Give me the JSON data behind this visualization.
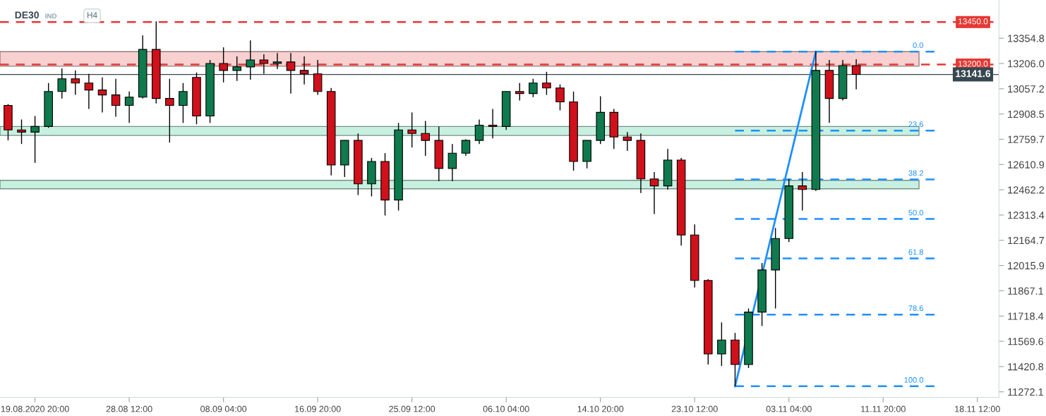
{
  "chart_data": {
    "type": "candlestick",
    "title": "DE30",
    "annotations": [
      "IND",
      "H4"
    ],
    "categories": [
      null,
      null,
      "19.08.2020 20:00",
      null,
      null,
      null,
      null,
      null,
      null,
      "28.08 12:00",
      null,
      null,
      null,
      null,
      null,
      null,
      "08.09 04:00",
      null,
      null,
      null,
      null,
      null,
      null,
      "16.09 20:00",
      null,
      null,
      null,
      null,
      null,
      null,
      "25.09 12:00",
      null,
      null,
      null,
      null,
      null,
      null,
      "06.10 04:00",
      null,
      null,
      null,
      null,
      null,
      null,
      "14.10 20:00",
      null,
      null,
      null,
      null,
      null,
      null,
      "23.10 12:00",
      null,
      null,
      null,
      null,
      null,
      null,
      "03.11 04:00",
      null,
      null,
      null,
      null,
      null,
      null,
      "11.11 20:00",
      null,
      null,
      null,
      null,
      null,
      null,
      "18.11 12:00",
      null
    ],
    "ohlc": [
      [
        12959,
        12967,
        12753,
        12815
      ],
      [
        12815,
        12876,
        12732,
        12802
      ],
      [
        12802,
        12897,
        12621,
        12835
      ],
      [
        12835,
        13091,
        12827,
        13041
      ],
      [
        13041,
        13177,
        13000,
        13116
      ],
      [
        13116,
        13165,
        13021,
        13091
      ],
      [
        13091,
        13145,
        12938,
        13050
      ],
      [
        13050,
        13124,
        12918,
        13021
      ],
      [
        13021,
        13116,
        12893,
        12959
      ],
      [
        12959,
        13041,
        12856,
        13008
      ],
      [
        13008,
        13371,
        13000,
        13289
      ],
      [
        13289,
        13454,
        12971,
        13000
      ],
      [
        13000,
        13116,
        12740,
        12959
      ],
      [
        12959,
        13091,
        12856,
        13041
      ],
      [
        13124,
        13153,
        12848,
        12897
      ],
      [
        12897,
        13227,
        12856,
        13206
      ],
      [
        13206,
        13301,
        13095,
        13165
      ],
      [
        13165,
        13248,
        13103,
        13186
      ],
      [
        13186,
        13342,
        13111,
        13227
      ],
      [
        13227,
        13260,
        13145,
        13206
      ],
      [
        13206,
        13268,
        13173,
        13215
      ],
      [
        13215,
        13268,
        13029,
        13165
      ],
      [
        13165,
        13248,
        13083,
        13145
      ],
      [
        13145,
        13227,
        13021,
        13041
      ],
      [
        13041,
        13062,
        12547,
        12608
      ],
      [
        12608,
        12753,
        12538,
        12753
      ],
      [
        12753,
        12794,
        12431,
        12497
      ],
      [
        12497,
        12650,
        12423,
        12629
      ],
      [
        12629,
        12678,
        12311,
        12402
      ],
      [
        12402,
        12856,
        12340,
        12815
      ],
      [
        12815,
        12918,
        12711,
        12794
      ],
      [
        12794,
        12868,
        12662,
        12753
      ],
      [
        12753,
        12835,
        12513,
        12588
      ],
      [
        12588,
        12732,
        12513,
        12678
      ],
      [
        12678,
        12760,
        12662,
        12753
      ],
      [
        12753,
        12876,
        12732,
        12843
      ],
      [
        12843,
        12938,
        12765,
        12835
      ],
      [
        12835,
        13041,
        12815,
        13041
      ],
      [
        13041,
        13091,
        12988,
        13029
      ],
      [
        13029,
        13116,
        13008,
        13091
      ],
      [
        13091,
        13157,
        13021,
        13062
      ],
      [
        13062,
        13083,
        12930,
        12980
      ],
      [
        12980,
        13041,
        12575,
        12629
      ],
      [
        12629,
        12753,
        12588,
        12753
      ],
      [
        12753,
        13013,
        12732,
        12918
      ],
      [
        12918,
        12938,
        12703,
        12773
      ],
      [
        12773,
        12802,
        12691,
        12753
      ],
      [
        12753,
        12794,
        12443,
        12526
      ],
      [
        12526,
        12567,
        12320,
        12485
      ],
      [
        12485,
        12703,
        12464,
        12637
      ],
      [
        12637,
        12650,
        12134,
        12196
      ],
      [
        12196,
        12258,
        11887,
        11928
      ],
      [
        11928,
        11936,
        11433,
        11495
      ],
      [
        11495,
        11681,
        11425,
        11577
      ],
      [
        11577,
        11619,
        11305,
        11433
      ],
      [
        11433,
        11763,
        11412,
        11742
      ],
      [
        11742,
        12031,
        11660,
        11990
      ],
      [
        11990,
        12237,
        11763,
        12175
      ],
      [
        12175,
        12526,
        12155,
        12485
      ],
      [
        12485,
        12567,
        12340,
        12464
      ],
      [
        12464,
        13276,
        12456,
        13165
      ],
      [
        13165,
        13227,
        12856,
        13000
      ],
      [
        13000,
        13227,
        12988,
        13194
      ],
      [
        13194,
        13231,
        13054,
        13141.6
      ],
      null,
      null,
      null,
      null,
      null,
      null,
      null,
      null,
      null,
      null
    ],
    "colors": [
      "#d0101a",
      "#d0101a",
      "#0f7a4d",
      "#0f7a4d",
      "#0f7a4d",
      "#d0101a",
      "#d0101a",
      "#d0101a",
      "#d0101a",
      "#0f7a4d",
      "#0f7a4d",
      "#d0101a",
      "#d0101a",
      "#0f7a4d",
      "#d0101a",
      "#0f7a4d",
      "#d0101a",
      "#0f7a4d",
      "#0f7a4d",
      "#d0101a",
      "#0f7a4d",
      "#d0101a",
      "#d0101a",
      "#d0101a",
      "#d0101a",
      "#0f7a4d",
      "#d0101a",
      "#0f7a4d",
      "#d0101a",
      "#0f7a4d",
      "#d0101a",
      "#d0101a",
      "#d0101a",
      "#0f7a4d",
      "#0f7a4d",
      "#0f7a4d",
      "#d0101a",
      "#0f7a4d",
      "#d0101a",
      "#0f7a4d",
      "#d0101a",
      "#d0101a",
      "#d0101a",
      "#0f7a4d",
      "#0f7a4d",
      "#d0101a",
      "#d0101a",
      "#d0101a",
      "#d0101a",
      "#0f7a4d",
      "#d0101a",
      "#d0101a",
      "#d0101a",
      "#0f7a4d",
      "#d0101a",
      "#0f7a4d",
      "#0f7a4d",
      "#0f7a4d",
      "#0f7a4d",
      "#d0101a",
      "#0f7a4d",
      "#d0101a",
      "#0f7a4d",
      "#d0101a",
      null,
      null,
      null,
      null,
      null,
      null,
      null,
      null,
      null,
      null
    ],
    "series": [
      {
        "type": "line",
        "color": "#1e90ff",
        "line_style": "solid",
        "values": [
          null,
          null,
          null,
          null,
          null,
          null,
          null,
          null,
          null,
          null,
          null,
          null,
          null,
          null,
          null,
          null,
          null,
          null,
          null,
          null,
          null,
          null,
          null,
          null,
          null,
          null,
          null,
          null,
          null,
          null,
          null,
          null,
          null,
          null,
          null,
          null,
          null,
          null,
          null,
          null,
          null,
          null,
          null,
          null,
          null,
          null,
          null,
          null,
          null,
          null,
          null,
          null,
          null,
          null,
          11305,
          null,
          null,
          null,
          null,
          null,
          13276,
          null,
          null,
          null,
          null,
          null,
          null,
          null,
          null,
          null,
          null,
          null,
          null,
          null
        ]
      },
      {
        "type": "line",
        "name": "0.0",
        "color": "#1e90ff",
        "line_style": "dashed",
        "values": [
          null,
          null,
          null,
          null,
          null,
          null,
          null,
          null,
          null,
          null,
          null,
          null,
          null,
          null,
          null,
          null,
          null,
          null,
          null,
          null,
          null,
          null,
          null,
          null,
          null,
          null,
          null,
          null,
          null,
          null,
          null,
          null,
          null,
          null,
          null,
          null,
          null,
          null,
          null,
          null,
          null,
          null,
          null,
          null,
          null,
          null,
          null,
          null,
          null,
          null,
          null,
          null,
          null,
          null,
          13276,
          13276,
          13276,
          13276,
          13276,
          13276,
          13276,
          13276,
          13276,
          13276,
          13276,
          13276,
          13276,
          13276,
          13276,
          13276,
          null,
          null,
          null,
          null
        ]
      },
      {
        "type": "line",
        "name": "23.6",
        "color": "#1e90ff",
        "line_style": "dashed",
        "values": [
          null,
          null,
          null,
          null,
          null,
          null,
          null,
          null,
          null,
          null,
          null,
          null,
          null,
          null,
          null,
          null,
          null,
          null,
          null,
          null,
          null,
          null,
          null,
          null,
          null,
          null,
          null,
          null,
          null,
          null,
          null,
          null,
          null,
          null,
          null,
          null,
          null,
          null,
          null,
          null,
          null,
          null,
          null,
          null,
          null,
          null,
          null,
          null,
          null,
          null,
          null,
          null,
          null,
          null,
          12811,
          12811,
          12811,
          12811,
          12811,
          12811,
          null,
          12811,
          12811,
          12811,
          12811,
          12811,
          12811,
          12811,
          12811,
          12811,
          null,
          null,
          null,
          null
        ]
      },
      {
        "type": "line",
        "name": "38.2",
        "color": "#1e90ff",
        "line_style": "dashed",
        "values": [
          null,
          null,
          null,
          null,
          null,
          null,
          null,
          null,
          null,
          null,
          null,
          null,
          null,
          null,
          null,
          null,
          null,
          null,
          null,
          null,
          null,
          null,
          null,
          null,
          null,
          null,
          null,
          null,
          null,
          null,
          null,
          null,
          null,
          null,
          null,
          null,
          null,
          null,
          null,
          null,
          null,
          null,
          null,
          null,
          null,
          null,
          null,
          null,
          null,
          null,
          null,
          null,
          null,
          null,
          12523,
          12523,
          12523,
          12523,
          12523,
          12523,
          null,
          12523,
          12523,
          12523,
          12523,
          12523,
          12523,
          12523,
          12523,
          12523,
          null,
          null,
          null,
          null
        ]
      },
      {
        "type": "line",
        "name": "50.0",
        "color": "#1e90ff",
        "line_style": "dashed",
        "values": [
          null,
          null,
          null,
          null,
          null,
          null,
          null,
          null,
          null,
          null,
          null,
          null,
          null,
          null,
          null,
          null,
          null,
          null,
          null,
          null,
          null,
          null,
          null,
          null,
          null,
          null,
          null,
          null,
          null,
          null,
          null,
          null,
          null,
          null,
          null,
          null,
          null,
          null,
          null,
          null,
          null,
          null,
          null,
          null,
          null,
          null,
          null,
          null,
          null,
          null,
          null,
          null,
          null,
          null,
          12290,
          12290,
          12290,
          12290,
          null,
          12290,
          12290,
          12290,
          12290,
          12290,
          12290,
          12290,
          12290,
          12290,
          12290,
          12290,
          null,
          null,
          null,
          null
        ]
      },
      {
        "type": "line",
        "name": "61.8",
        "color": "#1e90ff",
        "line_style": "dashed",
        "values": [
          null,
          null,
          null,
          null,
          null,
          null,
          null,
          null,
          null,
          null,
          null,
          null,
          null,
          null,
          null,
          null,
          null,
          null,
          null,
          null,
          null,
          null,
          null,
          null,
          null,
          null,
          null,
          null,
          null,
          null,
          null,
          null,
          null,
          null,
          null,
          null,
          null,
          null,
          null,
          null,
          null,
          null,
          null,
          null,
          null,
          null,
          null,
          null,
          null,
          null,
          null,
          null,
          null,
          null,
          12058,
          12058,
          12058,
          null,
          12058,
          12058,
          12058,
          12058,
          12058,
          12058,
          12058,
          12058,
          12058,
          12058,
          12058,
          12058,
          null,
          null,
          null,
          null
        ]
      },
      {
        "type": "line",
        "name": "78.6",
        "color": "#1e90ff",
        "line_style": "dashed",
        "values": [
          null,
          null,
          null,
          null,
          null,
          null,
          null,
          null,
          null,
          null,
          null,
          null,
          null,
          null,
          null,
          null,
          null,
          null,
          null,
          null,
          null,
          null,
          null,
          null,
          null,
          null,
          null,
          null,
          null,
          null,
          null,
          null,
          null,
          null,
          null,
          null,
          null,
          null,
          null,
          null,
          null,
          null,
          null,
          null,
          null,
          null,
          null,
          null,
          null,
          null,
          null,
          null,
          null,
          null,
          11727,
          null,
          11727,
          11727,
          11727,
          11727,
          11727,
          11727,
          11727,
          11727,
          11727,
          11727,
          11727,
          11727,
          11727,
          11727,
          null,
          null,
          null,
          null
        ]
      },
      {
        "type": "line",
        "name": "100.0",
        "color": "#1e90ff",
        "line_style": "dashed",
        "values": [
          null,
          null,
          null,
          null,
          null,
          null,
          null,
          null,
          null,
          null,
          null,
          null,
          null,
          null,
          null,
          null,
          null,
          null,
          null,
          null,
          null,
          null,
          null,
          null,
          null,
          null,
          null,
          null,
          null,
          null,
          null,
          null,
          null,
          null,
          null,
          null,
          null,
          null,
          null,
          null,
          null,
          null,
          null,
          null,
          null,
          null,
          null,
          null,
          null,
          null,
          null,
          null,
          null,
          null,
          11305,
          11305,
          11305,
          11305,
          11305,
          11305,
          11305,
          11305,
          11305,
          11305,
          11305,
          11305,
          11305,
          11305,
          11305,
          11305,
          null,
          null,
          null,
          null
        ]
      }
    ],
    "ylim": [
      11240,
      13580
    ],
    "yticks": [
      11272.1,
      11420.8,
      11569.6,
      11718.4,
      11867.1,
      12015.9,
      12164.7,
      12313.4,
      12462.2,
      12610.9,
      12759.7,
      12908.5,
      13057.2,
      {
        "value": 13206.0,
        "label": "13206.0"
      },
      13354.8
    ],
    "bands": [
      {
        "axis": "y",
        "from": 13190,
        "to": 13276,
        "color": "#f8d0d0"
      },
      {
        "axis": "y",
        "from": 12782,
        "to": 12835,
        "color": "#c8f0e0"
      },
      {
        "axis": "y",
        "from": 12468,
        "to": 12518,
        "color": "#c8f0e0"
      }
    ],
    "ref_lines": [
      {
        "axis": "y",
        "value": 13450,
        "label": "13450.0",
        "color": "#e53935",
        "line_style": "dashed"
      },
      {
        "axis": "y",
        "value": 13200,
        "label": "13200.0",
        "color": "#e53935",
        "line_style": "dashed"
      },
      {
        "axis": "y",
        "value": 13141.6,
        "label": "13141.6",
        "color": "#37474f",
        "line_style": "solid"
      }
    ],
    "grid": false,
    "legend": false
  }
}
